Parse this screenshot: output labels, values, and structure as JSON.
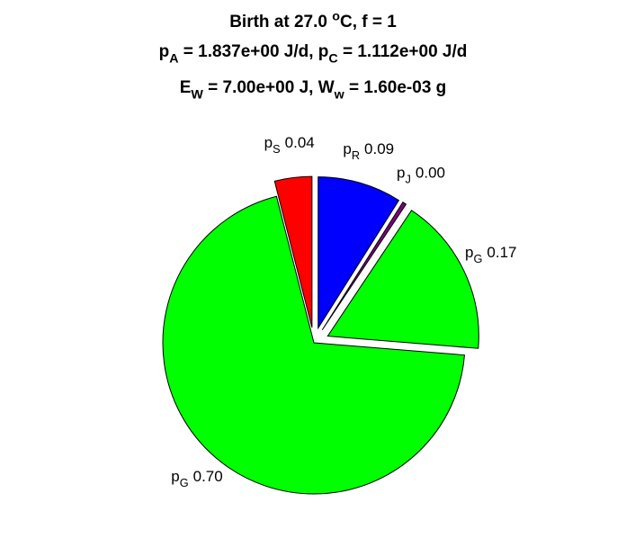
{
  "chart_data": {
    "type": "pie",
    "title": [
      [
        {
          "text": "Birth at 27.0 "
        },
        {
          "text": "o",
          "shift": "sup"
        },
        {
          "text": "C, f = 1"
        }
      ],
      [
        {
          "text": "p"
        },
        {
          "text": "A",
          "shift": "sub"
        },
        {
          "text": " = 1.837e+00 J/d, p"
        },
        {
          "text": "C",
          "shift": "sub"
        },
        {
          "text": " = 1.112e+00 J/d"
        }
      ],
      [
        {
          "text": "E"
        },
        {
          "text": "W",
          "shift": "sub"
        },
        {
          "text": " = 7.00e+00 J, W"
        },
        {
          "text": "w",
          "shift": "sub"
        },
        {
          "text": " = 1.60e-03 g"
        }
      ]
    ],
    "categories": [
      [
        {
          "text": "p"
        },
        {
          "text": "S",
          "shift": "sub"
        }
      ],
      [
        {
          "text": "p"
        },
        {
          "text": "R",
          "shift": "sub"
        }
      ],
      [
        {
          "text": "p"
        },
        {
          "text": "J",
          "shift": "sub"
        }
      ],
      [
        {
          "text": "p"
        },
        {
          "text": "G",
          "shift": "sub"
        }
      ],
      [
        {
          "text": "p"
        },
        {
          "text": "G",
          "shift": "sub"
        }
      ]
    ],
    "values": [
      0.04,
      0.09,
      0.004,
      0.17,
      0.7
    ],
    "value_labels": [
      "0.04",
      "0.09",
      "0.00",
      "0.17",
      "0.70"
    ],
    "colors": [
      "#ff0000",
      "#0000ff",
      "#800080",
      "#00ff00",
      "#00ff00"
    ],
    "explode": [
      1,
      1,
      1,
      1,
      0
    ]
  }
}
